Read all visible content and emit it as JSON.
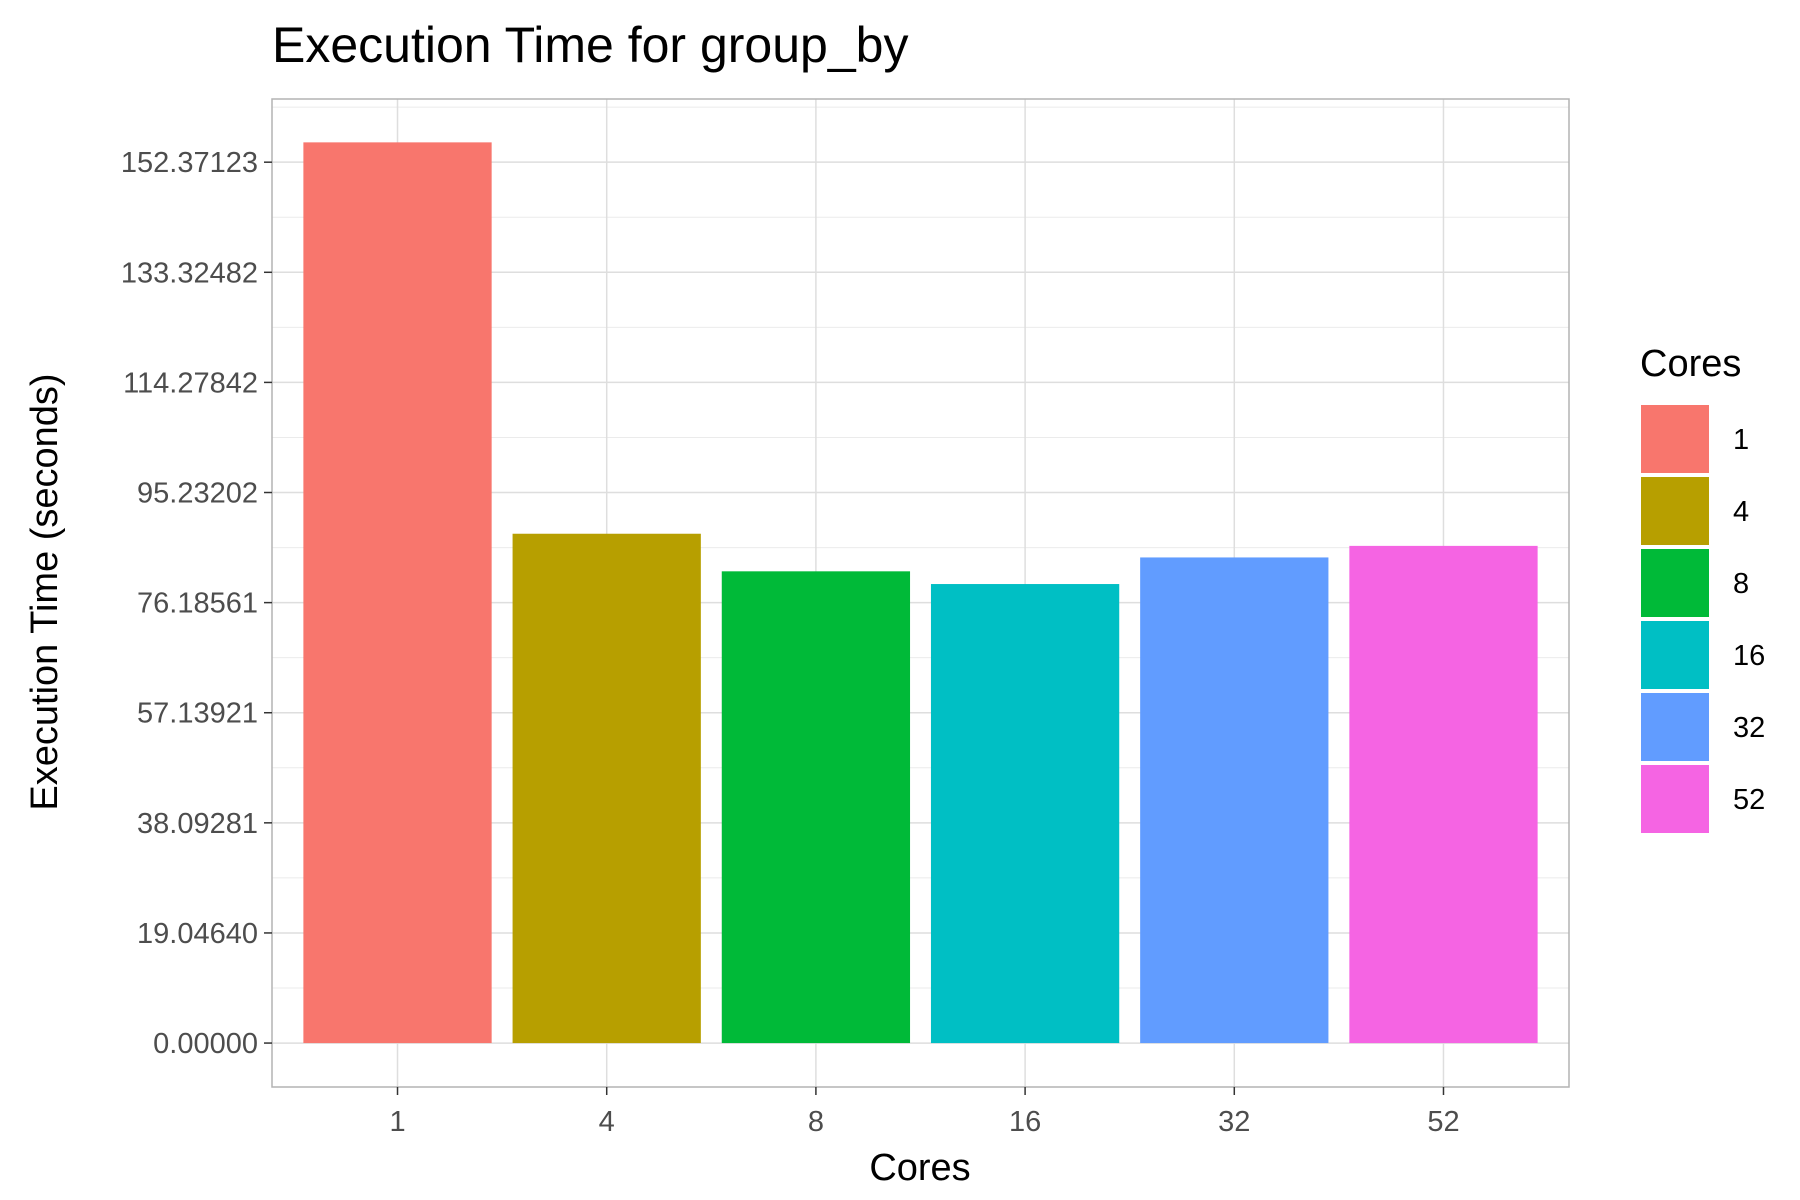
{
  "chart_data": {
    "type": "bar",
    "title": "Execution Time for group_by",
    "xlabel": "Cores",
    "ylabel": "Execution Time (seconds)",
    "categories": [
      "1",
      "4",
      "8",
      "16",
      "32",
      "52"
    ],
    "values": [
      155.8,
      88.1,
      81.6,
      79.4,
      84.0,
      86.0
    ],
    "colors": [
      "#F8766D",
      "#B79F00",
      "#00BA38",
      "#00BFC4",
      "#619CFF",
      "#F564E3"
    ],
    "y_ticks": [
      0,
      19.0464,
      38.09281,
      57.13921,
      76.18561,
      95.23202,
      114.27842,
      133.32482,
      152.37123
    ],
    "y_tick_labels": [
      "0.00000",
      "19.04640",
      "38.09281",
      "57.13921",
      "76.18561",
      "95.23202",
      "114.27842",
      "133.32482",
      "152.37123"
    ],
    "ylim": [
      -7.6,
      163.3
    ],
    "grid": true,
    "legend": {
      "title": "Cores",
      "position": "right",
      "items": [
        "1",
        "4",
        "8",
        "16",
        "32",
        "52"
      ]
    }
  }
}
